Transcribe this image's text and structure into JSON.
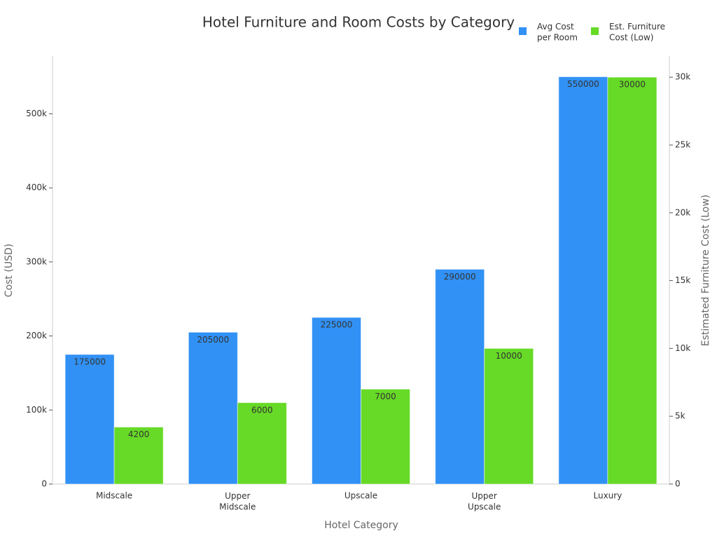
{
  "chart_data": {
    "type": "bar",
    "title": "Hotel Furniture and Room Costs by Category",
    "x_label": "Hotel Category",
    "y_label": "Cost (USD)",
    "y2_label": "Estimated Furniture Cost (Low)",
    "categories": [
      "Midscale",
      "Upper\nMidscale",
      "Upscale",
      "Upper\nUpscale",
      "Luxury"
    ],
    "series": [
      {
        "name": "Avg Cost\nper Room",
        "color": "#3191f5",
        "values": [
          175000,
          205000,
          225000,
          290000,
          550000
        ]
      },
      {
        "name": "Est. Furniture\nCost (Low)",
        "color": "#66da26",
        "axis": "y2",
        "values": [
          4200,
          6000,
          7000,
          10000,
          30000
        ]
      }
    ],
    "ylim": [
      0,
      578000
    ],
    "yticks": [
      0,
      {
        "value": 100000,
        "label": "100k"
      },
      {
        "value": 200000,
        "label": "200k"
      },
      {
        "value": 300000,
        "label": "300k"
      },
      {
        "value": 400000,
        "label": "400k"
      },
      {
        "value": 500000,
        "label": "500k"
      }
    ],
    "y2lim": [
      0,
      31560
    ],
    "y2ticks": [
      0,
      {
        "value": 5000,
        "label": "5k"
      },
      {
        "value": 10000,
        "label": "10k"
      },
      {
        "value": 15000,
        "label": "15k"
      },
      {
        "value": 20000,
        "label": "20k"
      },
      {
        "value": 25000,
        "label": "25k"
      },
      {
        "value": 30000,
        "label": "30k"
      }
    ],
    "grid": false,
    "legend": "top-right"
  }
}
